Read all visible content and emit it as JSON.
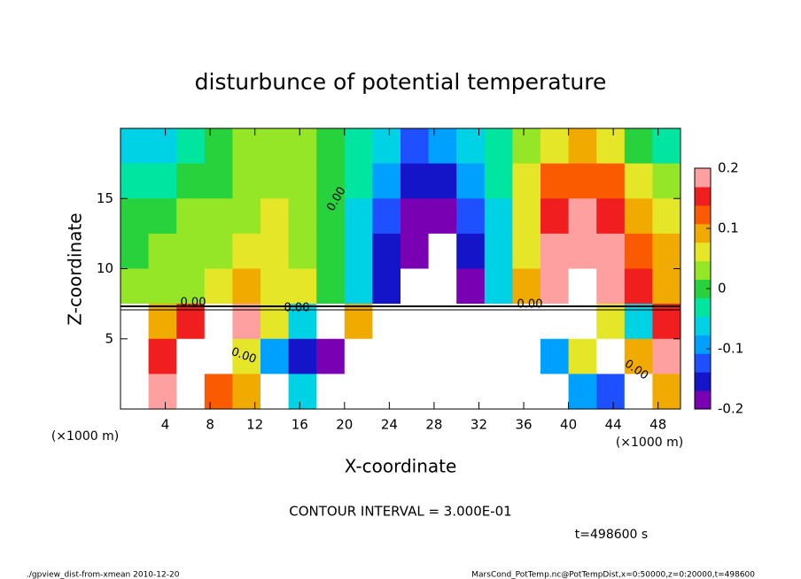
{
  "chart_data": {
    "type": "heatmap",
    "title": "disturbunce of potential temperature",
    "xlabel": "X-coordinate",
    "ylabel": "Z-coordinate",
    "x_unit_label": "(×1000 m)",
    "xlim": [
      0,
      50
    ],
    "ylim": [
      0,
      20
    ],
    "xticks": [
      4,
      8,
      12,
      16,
      20,
      24,
      28,
      32,
      36,
      40,
      44,
      48
    ],
    "yticks": [
      5,
      10,
      15
    ],
    "x": [
      1.25,
      3.75,
      6.25,
      8.75,
      11.25,
      13.75,
      16.25,
      18.75,
      21.25,
      23.75,
      26.25,
      28.75,
      31.25,
      33.75,
      36.25,
      38.75,
      41.25,
      43.75,
      46.25,
      48.75
    ],
    "y": [
      18.75,
      16.25,
      13.75,
      11.25,
      8.75,
      6.25,
      3.75,
      1.25
    ],
    "z": [
      [
        -0.06,
        -0.05,
        -0.03,
        0.0,
        0.02,
        0.03,
        0.02,
        0.0,
        -0.03,
        -0.07,
        -0.12,
        -0.09,
        -0.06,
        -0.02,
        0.03,
        0.07,
        0.08,
        0.06,
        0.0,
        -0.03
      ],
      [
        -0.03,
        -0.02,
        0.0,
        0.01,
        0.03,
        0.04,
        0.03,
        0.01,
        -0.04,
        -0.1,
        -0.16,
        -0.14,
        -0.09,
        -0.04,
        0.05,
        0.12,
        0.13,
        0.11,
        0.06,
        0.02
      ],
      [
        0.0,
        0.01,
        0.02,
        0.03,
        0.04,
        0.05,
        0.03,
        0.0,
        -0.05,
        -0.12,
        -0.18,
        -0.19,
        -0.13,
        -0.05,
        0.06,
        0.15,
        0.17,
        0.15,
        0.1,
        0.05
      ],
      [
        0.01,
        0.02,
        0.03,
        0.03,
        0.05,
        0.06,
        0.04,
        0.0,
        -0.06,
        -0.14,
        -0.2,
        -0.23,
        -0.15,
        -0.06,
        0.07,
        0.17,
        0.2,
        0.18,
        0.13,
        0.08
      ],
      [
        0.02,
        0.03,
        0.04,
        0.06,
        0.08,
        0.07,
        0.05,
        0.01,
        -0.07,
        -0.15,
        -0.21,
        -0.25,
        -0.18,
        -0.06,
        0.08,
        0.18,
        0.24,
        0.2,
        0.15,
        0.1
      ],
      [
        0.25,
        0.1,
        0.15,
        0.3,
        0.2,
        0.05,
        -0.05,
        0.3,
        0.1,
        0.25,
        0.3,
        0.25,
        0.3,
        0.25,
        0.25,
        0.3,
        0.25,
        0.05,
        -0.05,
        0.15
      ],
      [
        0.3,
        0.15,
        0.3,
        0.25,
        0.05,
        -0.1,
        -0.15,
        -0.18,
        0.3,
        0.25,
        0.3,
        0.25,
        0.3,
        0.25,
        0.3,
        -0.08,
        0.05,
        0.3,
        0.1,
        0.2
      ],
      [
        0.3,
        0.18,
        0.3,
        0.12,
        0.1,
        0.25,
        -0.05,
        0.3,
        0.25,
        0.3,
        0.3,
        0.25,
        0.3,
        0.25,
        0.3,
        0.3,
        -0.1,
        -0.12,
        0.3,
        0.1
      ]
    ],
    "zlim": [
      -0.2,
      0.2
    ],
    "zticks": [
      0.2,
      0.1,
      0,
      -0.1,
      -0.2
    ],
    "colorscale": [
      "#7a00b4",
      "#1414c8",
      "#1e50ff",
      "#00a0ff",
      "#00d2e6",
      "#00e6a0",
      "#28d23c",
      "#96e628",
      "#e6e628",
      "#f0aa00",
      "#fa5a00",
      "#f01e1e",
      "#ffa0a0"
    ],
    "out_of_range_color": "#ffffff",
    "contour_labels": [
      "0.00",
      "0.00",
      "0.00",
      "0.00",
      "0.00",
      "0.00"
    ],
    "contour_interval": "CONTOUR INTERVAL = 3.000E-01",
    "time_label": "t=498600 s",
    "footer_left": "./gpview_dist-from-xmean  2010-12-20",
    "footer_right": "MarsCond_PotTemp.nc@PotTempDist,x=0:50000,z=0:20000,t=498600"
  }
}
